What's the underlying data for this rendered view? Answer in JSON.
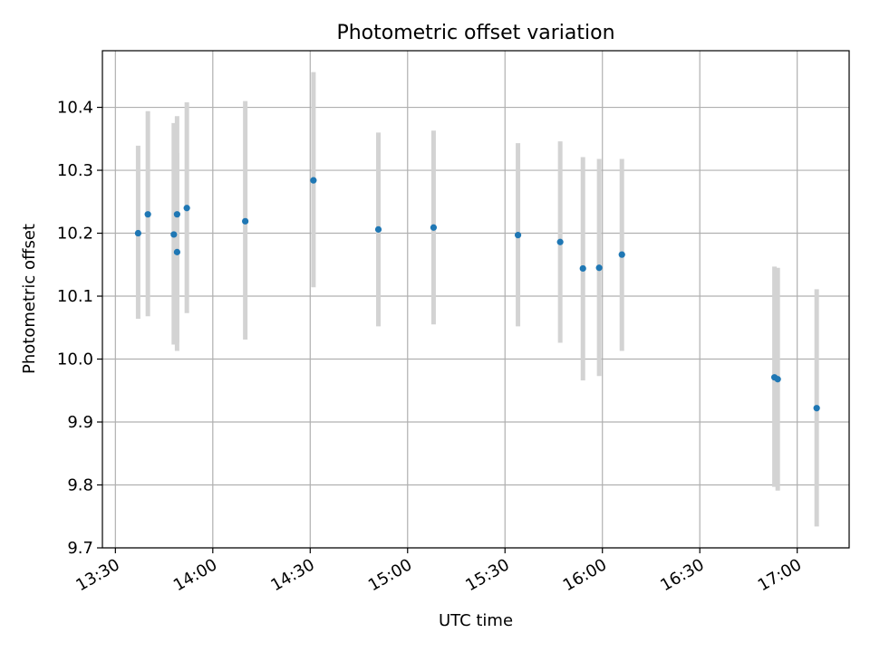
{
  "chart_data": {
    "type": "scatter",
    "title": "Photometric offset variation",
    "xlabel": "UTC time",
    "ylabel": "Photometric offset",
    "x_tick_labels": [
      "13:30",
      "14:00",
      "14:30",
      "15:00",
      "15:30",
      "16:00",
      "16:30",
      "17:00"
    ],
    "y_tick_labels": [
      "9.7",
      "9.8",
      "9.9",
      "10.0",
      "10.1",
      "10.2",
      "10.3",
      "10.4"
    ],
    "xlim": [
      "13:26",
      "17:16"
    ],
    "ylim": [
      9.7,
      10.49
    ],
    "grid": true,
    "legend": "none",
    "colors": {
      "point": "#1f77b4",
      "error_bar": "#d3d3d3"
    },
    "points": [
      {
        "x": "13:37",
        "y": 10.2,
        "ylow": 10.064,
        "yhigh": 10.339
      },
      {
        "x": "13:40",
        "y": 10.23,
        "ylow": 10.068,
        "yhigh": 10.394
      },
      {
        "x": "13:48",
        "y": 10.198,
        "ylow": 10.023,
        "yhigh": 10.375
      },
      {
        "x": "13:49",
        "y": 10.23,
        "ylow": 10.027,
        "yhigh": 10.386
      },
      {
        "x": "13:49",
        "y": 10.17,
        "ylow": 10.013,
        "yhigh": 10.327
      },
      {
        "x": "13:52",
        "y": 10.24,
        "ylow": 10.073,
        "yhigh": 10.408
      },
      {
        "x": "14:10",
        "y": 10.219,
        "ylow": 10.031,
        "yhigh": 10.41
      },
      {
        "x": "14:31",
        "y": 10.284,
        "ylow": 10.114,
        "yhigh": 10.456
      },
      {
        "x": "14:51",
        "y": 10.206,
        "ylow": 10.052,
        "yhigh": 10.36
      },
      {
        "x": "15:08",
        "y": 10.209,
        "ylow": 10.055,
        "yhigh": 10.363
      },
      {
        "x": "15:34",
        "y": 10.197,
        "ylow": 10.052,
        "yhigh": 10.343
      },
      {
        "x": "15:47",
        "y": 10.186,
        "ylow": 10.026,
        "yhigh": 10.346
      },
      {
        "x": "15:54",
        "y": 10.144,
        "ylow": 9.966,
        "yhigh": 10.321
      },
      {
        "x": "15:59",
        "y": 10.145,
        "ylow": 9.973,
        "yhigh": 10.318
      },
      {
        "x": "16:06",
        "y": 10.166,
        "ylow": 10.013,
        "yhigh": 10.318
      },
      {
        "x": "16:53",
        "y": 9.971,
        "ylow": 9.797,
        "yhigh": 10.147
      },
      {
        "x": "16:54",
        "y": 9.968,
        "ylow": 9.791,
        "yhigh": 10.145
      },
      {
        "x": "17:06",
        "y": 9.922,
        "ylow": 9.734,
        "yhigh": 10.111
      }
    ]
  }
}
